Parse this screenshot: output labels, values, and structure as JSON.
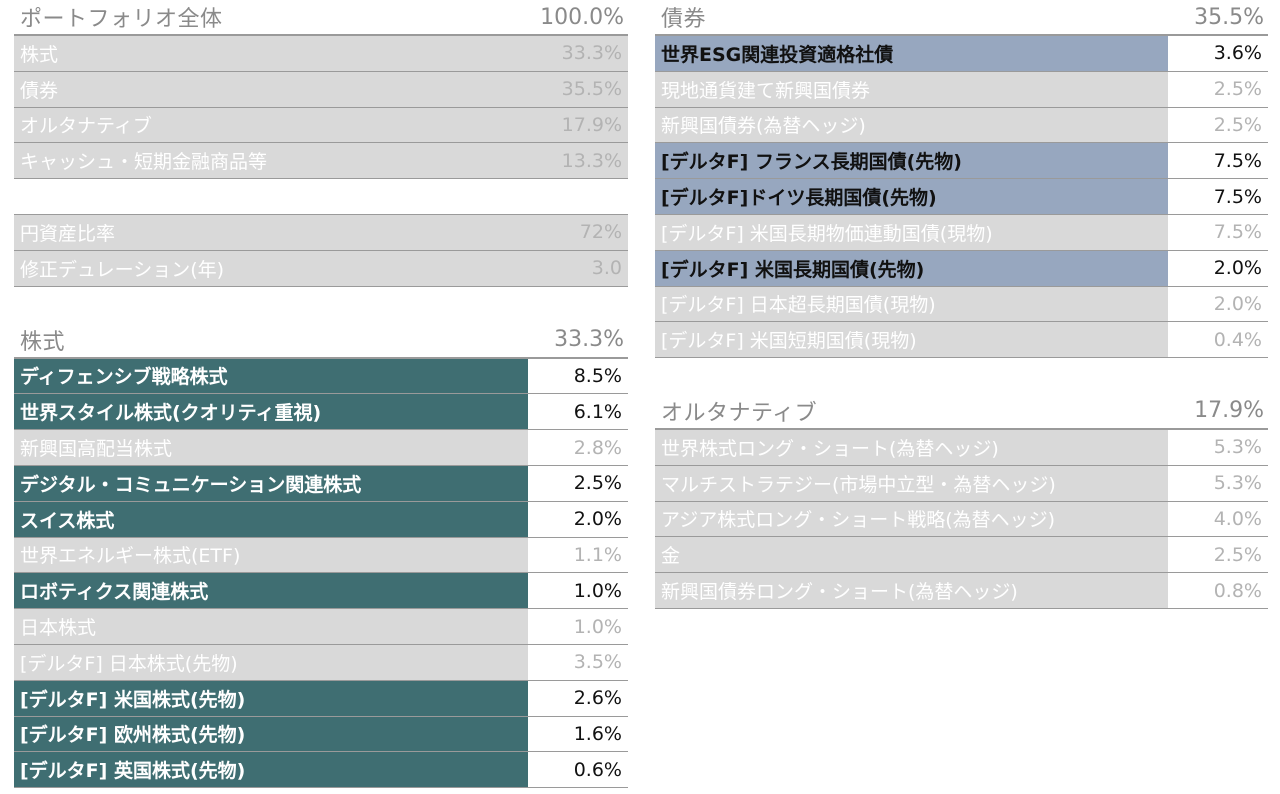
{
  "portfolio": {
    "title": "ポートフォリオ全体",
    "total": "100.0%",
    "rows": [
      {
        "label": "株式",
        "value": "33.3%"
      },
      {
        "label": "債券",
        "value": "35.5%"
      },
      {
        "label": "オルタナティブ",
        "value": "17.9%"
      },
      {
        "label": "キャッシュ・短期金融商品等",
        "value": "13.3%"
      }
    ],
    "metrics": [
      {
        "label": "円資産比率",
        "value": "72%"
      },
      {
        "label": "修正デュレーション(年)",
        "value": "3.0"
      }
    ]
  },
  "equity": {
    "title": "株式",
    "total": "33.3%",
    "rows": [
      {
        "label": "ディフェンシブ戦略株式",
        "value": "8.5%",
        "style": "teal"
      },
      {
        "label": "世界スタイル株式(クオリティ重視)",
        "value": "6.1%",
        "style": "teal"
      },
      {
        "label": "新興国高配当株式",
        "value": "2.8%",
        "style": "grey"
      },
      {
        "label": "デジタル・コミュニケーション関連株式",
        "value": "2.5%",
        "style": "teal"
      },
      {
        "label": "スイス株式",
        "value": "2.0%",
        "style": "teal"
      },
      {
        "label": "世界エネルギー株式(ETF)",
        "value": "1.1%",
        "style": "grey"
      },
      {
        "label": "ロボティクス関連株式",
        "value": "1.0%",
        "style": "teal"
      },
      {
        "label": "日本株式",
        "value": "1.0%",
        "style": "grey"
      },
      {
        "label": "[デルタF] 日本株式(先物)",
        "value": "3.5%",
        "style": "grey"
      },
      {
        "label": "[デルタF] 米国株式(先物)",
        "value": "2.6%",
        "style": "teal"
      },
      {
        "label": "[デルタF] 欧州株式(先物)",
        "value": "1.6%",
        "style": "teal"
      },
      {
        "label": "[デルタF] 英国株式(先物)",
        "value": "0.6%",
        "style": "teal"
      }
    ]
  },
  "bonds": {
    "title": "債券",
    "total": "35.5%",
    "rows": [
      {
        "label": "世界ESG関連投資適格社債",
        "value": "3.6%",
        "style": "blue"
      },
      {
        "label": "現地通貨建て新興国債券",
        "value": "2.5%",
        "style": "grey"
      },
      {
        "label": "新興国債券(為替ヘッジ)",
        "value": "2.5%",
        "style": "grey"
      },
      {
        "label": "[デルタF] フランス長期国債(先物)",
        "value": "7.5%",
        "style": "blue"
      },
      {
        "label": "[デルタF]ドイツ長期国債(先物)",
        "value": "7.5%",
        "style": "blue"
      },
      {
        "label": "[デルタF] 米国長期物価連動国債(現物)",
        "value": "7.5%",
        "style": "grey"
      },
      {
        "label": "[デルタF] 米国長期国債(先物)",
        "value": "2.0%",
        "style": "blue"
      },
      {
        "label": "[デルタF] 日本超長期国債(現物)",
        "value": "2.0%",
        "style": "grey"
      },
      {
        "label": "[デルタF] 米国短期国債(現物)",
        "value": "0.4%",
        "style": "grey"
      }
    ]
  },
  "alternatives": {
    "title": "オルタナティブ",
    "total": "17.9%",
    "rows": [
      {
        "label": "世界株式ロング・ショート(為替ヘッジ)",
        "value": "5.3%",
        "style": "grey"
      },
      {
        "label": "マルチストラテジー(市場中立型・為替ヘッジ)",
        "value": "5.3%",
        "style": "grey"
      },
      {
        "label": "アジア株式ロング・ショート戦略(為替ヘッジ)",
        "value": "4.0%",
        "style": "grey"
      },
      {
        "label": "金",
        "value": "2.5%",
        "style": "grey"
      },
      {
        "label": "新興国債券ロング・ショート(為替ヘッジ)",
        "value": "0.8%",
        "style": "grey"
      }
    ]
  }
}
